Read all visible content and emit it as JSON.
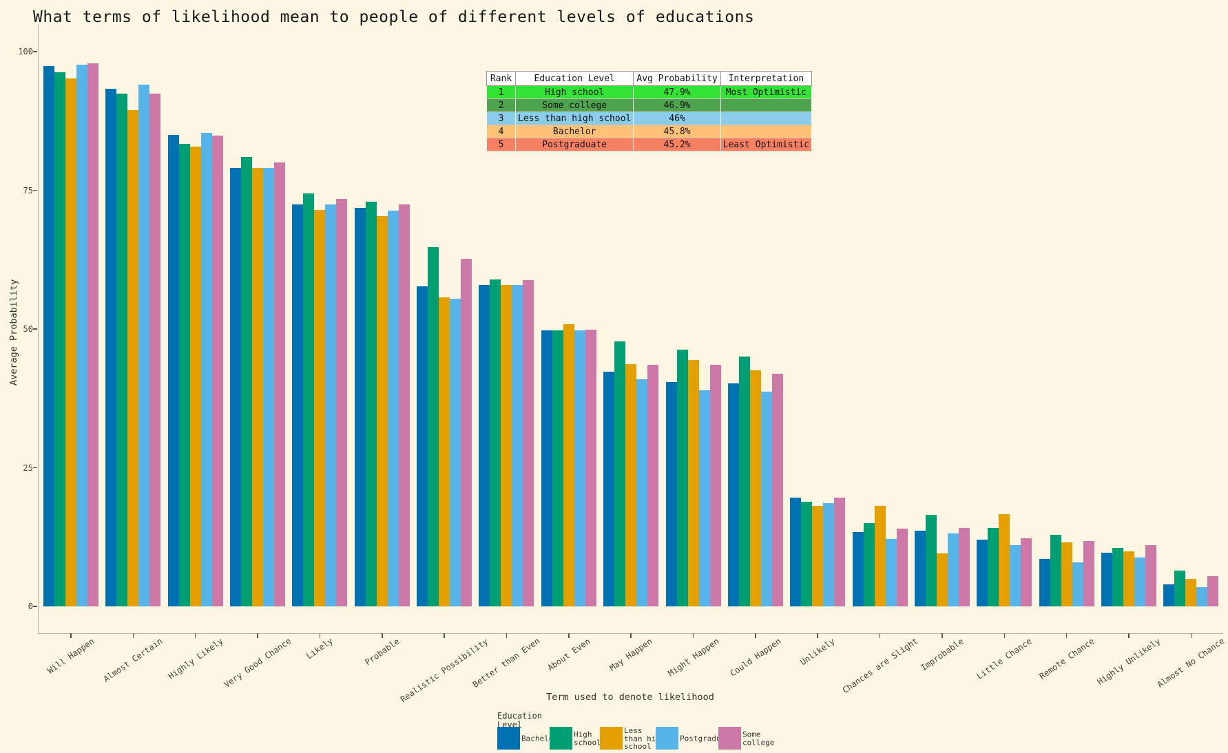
{
  "title": "What terms of likelihood mean to people of different levels of educations",
  "axes": {
    "y_label": "Average Probability",
    "x_label": "Term used to denote likelihood"
  },
  "legend": {
    "title_lines": [
      "Education",
      "Level"
    ],
    "items": [
      {
        "name": "Bachelor",
        "label_lines": [
          "Bachelor"
        ],
        "color": "#0072B2"
      },
      {
        "name": "High school",
        "label_lines": [
          "High",
          "school"
        ],
        "color": "#009E73"
      },
      {
        "name": "Less than high school",
        "label_lines": [
          "Less",
          "than high",
          "school"
        ],
        "color": "#E3A000"
      },
      {
        "name": "Postgraduate",
        "label_lines": [
          "Postgraduate"
        ],
        "color": "#56B4E9"
      },
      {
        "name": "Some college",
        "label_lines": [
          "Some",
          "college"
        ],
        "color": "#CC79A7"
      }
    ]
  },
  "table": {
    "headers": [
      "Rank",
      "Education Level",
      "Avg Probability",
      "Interpretation"
    ],
    "rows": [
      {
        "rank": "1",
        "level": "High school",
        "prob": "47.9%",
        "interp": "Most Optimistic",
        "color": "#33E333"
      },
      {
        "rank": "2",
        "level": "Some college",
        "prob": "46.9%",
        "interp": "",
        "color": "#4EA34E"
      },
      {
        "rank": "3",
        "level": "Less than high school",
        "prob": "46%",
        "interp": "",
        "color": "#8BCBEC"
      },
      {
        "rank": "4",
        "level": "Bachelor",
        "prob": "45.8%",
        "interp": "",
        "color": "#FFC175"
      },
      {
        "rank": "5",
        "level": "Postgraduate",
        "prob": "45.2%",
        "interp": "Least Optimistic",
        "color": "#F98162"
      }
    ]
  },
  "chart_data": {
    "type": "bar",
    "title": "What terms of likelihood mean to people of different levels of educations",
    "xlabel": "Term used to denote likelihood",
    "ylabel": "Average Probability",
    "ylim": [
      0,
      100
    ],
    "yticks": [
      0,
      25,
      50,
      75,
      100
    ],
    "grid": false,
    "legend_position": "bottom",
    "background": "#FDF6E3",
    "categories": [
      "Will Happen",
      "Almost Certain",
      "Highly Likely",
      "Very Good Chance",
      "Likely",
      "Probable",
      "Realistic Possibility",
      "Better than Even",
      "About Even",
      "May Happen",
      "Might Happen",
      "Could Happen",
      "Unlikely",
      "Chances are Slight",
      "Improbable",
      "Little Chance",
      "Remote Chance",
      "Highly Unlikely",
      "Almost No Chance"
    ],
    "series": [
      {
        "name": "Bachelor",
        "color": "#0072B2",
        "values": [
          97.4,
          93.3,
          85.0,
          79.0,
          72.5,
          71.8,
          57.7,
          58.0,
          49.8,
          42.3,
          40.5,
          40.2,
          19.6,
          13.4,
          13.6,
          12.0,
          8.5,
          9.7,
          4.0
        ]
      },
      {
        "name": "High school",
        "color": "#009E73",
        "values": [
          96.3,
          92.4,
          83.4,
          81.0,
          74.5,
          72.9,
          64.8,
          58.9,
          49.7,
          47.8,
          46.3,
          45.0,
          18.9,
          15.0,
          16.5,
          14.1,
          12.9,
          10.6,
          6.5
        ]
      },
      {
        "name": "Less than high school",
        "color": "#E3A000",
        "values": [
          95.1,
          89.4,
          82.9,
          79.0,
          71.5,
          70.3,
          55.7,
          58.0,
          50.9,
          43.7,
          44.4,
          42.6,
          18.1,
          18.1,
          9.5,
          16.6,
          11.5,
          9.9,
          5.0
        ]
      },
      {
        "name": "Postgraduate",
        "color": "#56B4E9",
        "values": [
          97.6,
          94.1,
          85.4,
          79.0,
          72.5,
          71.3,
          55.4,
          57.9,
          49.8,
          41.0,
          39.0,
          38.7,
          18.6,
          12.2,
          13.1,
          11.0,
          8.0,
          8.8,
          3.5
        ]
      },
      {
        "name": "Some college",
        "color": "#CC79A7",
        "values": [
          97.9,
          92.4,
          84.9,
          80.0,
          73.5,
          72.4,
          62.7,
          58.8,
          49.9,
          43.6,
          43.6,
          41.9,
          19.6,
          14.0,
          14.1,
          12.3,
          11.8,
          11.1,
          5.5
        ]
      }
    ],
    "overlay_ranking_table": {
      "headers": [
        "Rank",
        "Education Level",
        "Avg Probability",
        "Interpretation"
      ],
      "rows": [
        [
          "1",
          "High school",
          "47.9%",
          "Most Optimistic"
        ],
        [
          "2",
          "Some college",
          "46.9%",
          ""
        ],
        [
          "3",
          "Less than high school",
          "46%",
          ""
        ],
        [
          "4",
          "Bachelor",
          "45.8%",
          ""
        ],
        [
          "5",
          "Postgraduate",
          "45.2%",
          "Least Optimistic"
        ]
      ]
    }
  }
}
